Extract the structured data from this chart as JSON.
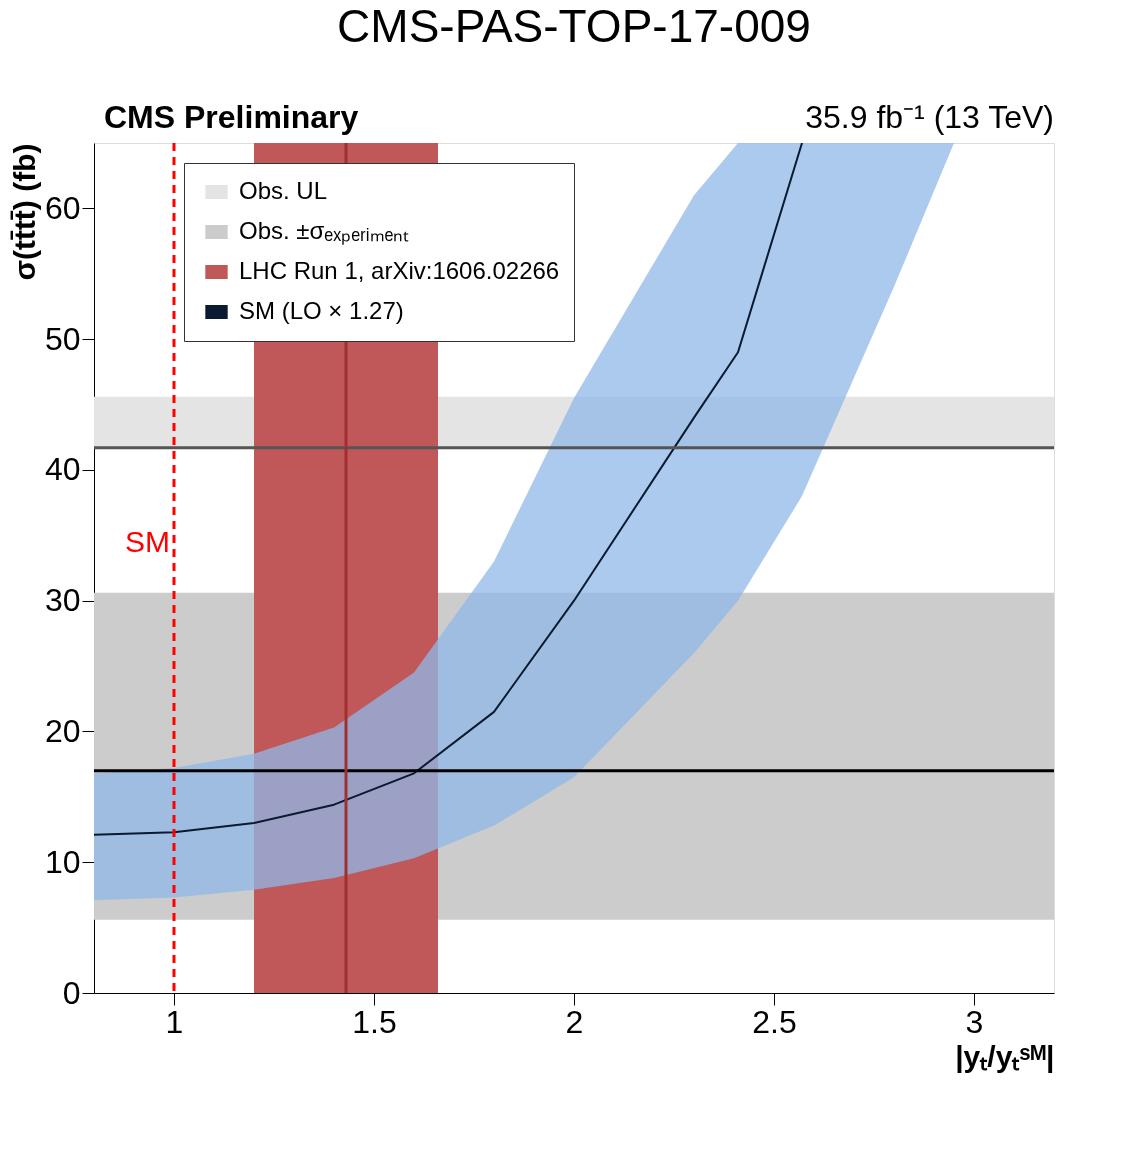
{
  "chart_data": {
    "type": "line",
    "title": "CMS-PAS-TOP-17-009",
    "annotations": [
      "CMS Preliminary",
      "35.9 fb⁻¹ (13 TeV)"
    ],
    "xlabel": "|yₜ/yₜˢᴹ|",
    "ylabel": "σ(tt̄tt̄) (fb)",
    "x": [
      0.8,
      1.0,
      1.2,
      1.4,
      1.6,
      1.8,
      2.0,
      2.3,
      2.41,
      2.57,
      2.8,
      2.95
    ],
    "series": [
      {
        "name": "SM (LO × 1.27)",
        "color": "#0a1a30",
        "values": [
          12.1,
          12.3,
          13.0,
          14.4,
          16.8,
          21.5,
          30,
          44,
          49,
          65,
          null,
          null
        ],
        "lower": [
          7.1,
          7.3,
          7.9,
          8.8,
          10.3,
          12.8,
          16.5,
          26,
          30,
          38,
          54,
          65
        ],
        "upper": [
          16.8,
          17.2,
          18.3,
          20.3,
          24.5,
          33,
          45.5,
          61,
          65,
          65,
          65,
          65
        ]
      }
    ],
    "bands": [
      {
        "axis": "y",
        "from": 41.7,
        "to": 45.6,
        "label": "Obs. UL",
        "color": "#e4e4e4"
      },
      {
        "axis": "y",
        "from": 5.6,
        "to": 30.6,
        "label": "Obs. ±σₑₓₚₑᵣᵢₘₑₙₜ",
        "color": "#cccccc"
      },
      {
        "axis": "x",
        "from": 1.2,
        "to": 1.66,
        "label": "LHC Run 1, arXiv:1606.02266",
        "color": "#c0585a"
      }
    ],
    "ref_lines": [
      {
        "axis": "y",
        "value": 41.7,
        "color": "#555555"
      },
      {
        "axis": "y",
        "value": 17,
        "color": "#000000"
      },
      {
        "axis": "x",
        "value": 1.43,
        "color": "#a03030"
      },
      {
        "axis": "x",
        "value": 1,
        "label": "SM",
        "color": "#ff0000",
        "line_style": "dashed"
      }
    ],
    "xlim": [
      0.8,
      3.2
    ],
    "ylim": [
      0,
      65
    ],
    "xticks": [
      1,
      1.5,
      2,
      2.5,
      3
    ],
    "yticks": [
      0,
      10,
      20,
      30,
      40,
      50,
      60
    ],
    "grid": false,
    "legend": "top left"
  }
}
